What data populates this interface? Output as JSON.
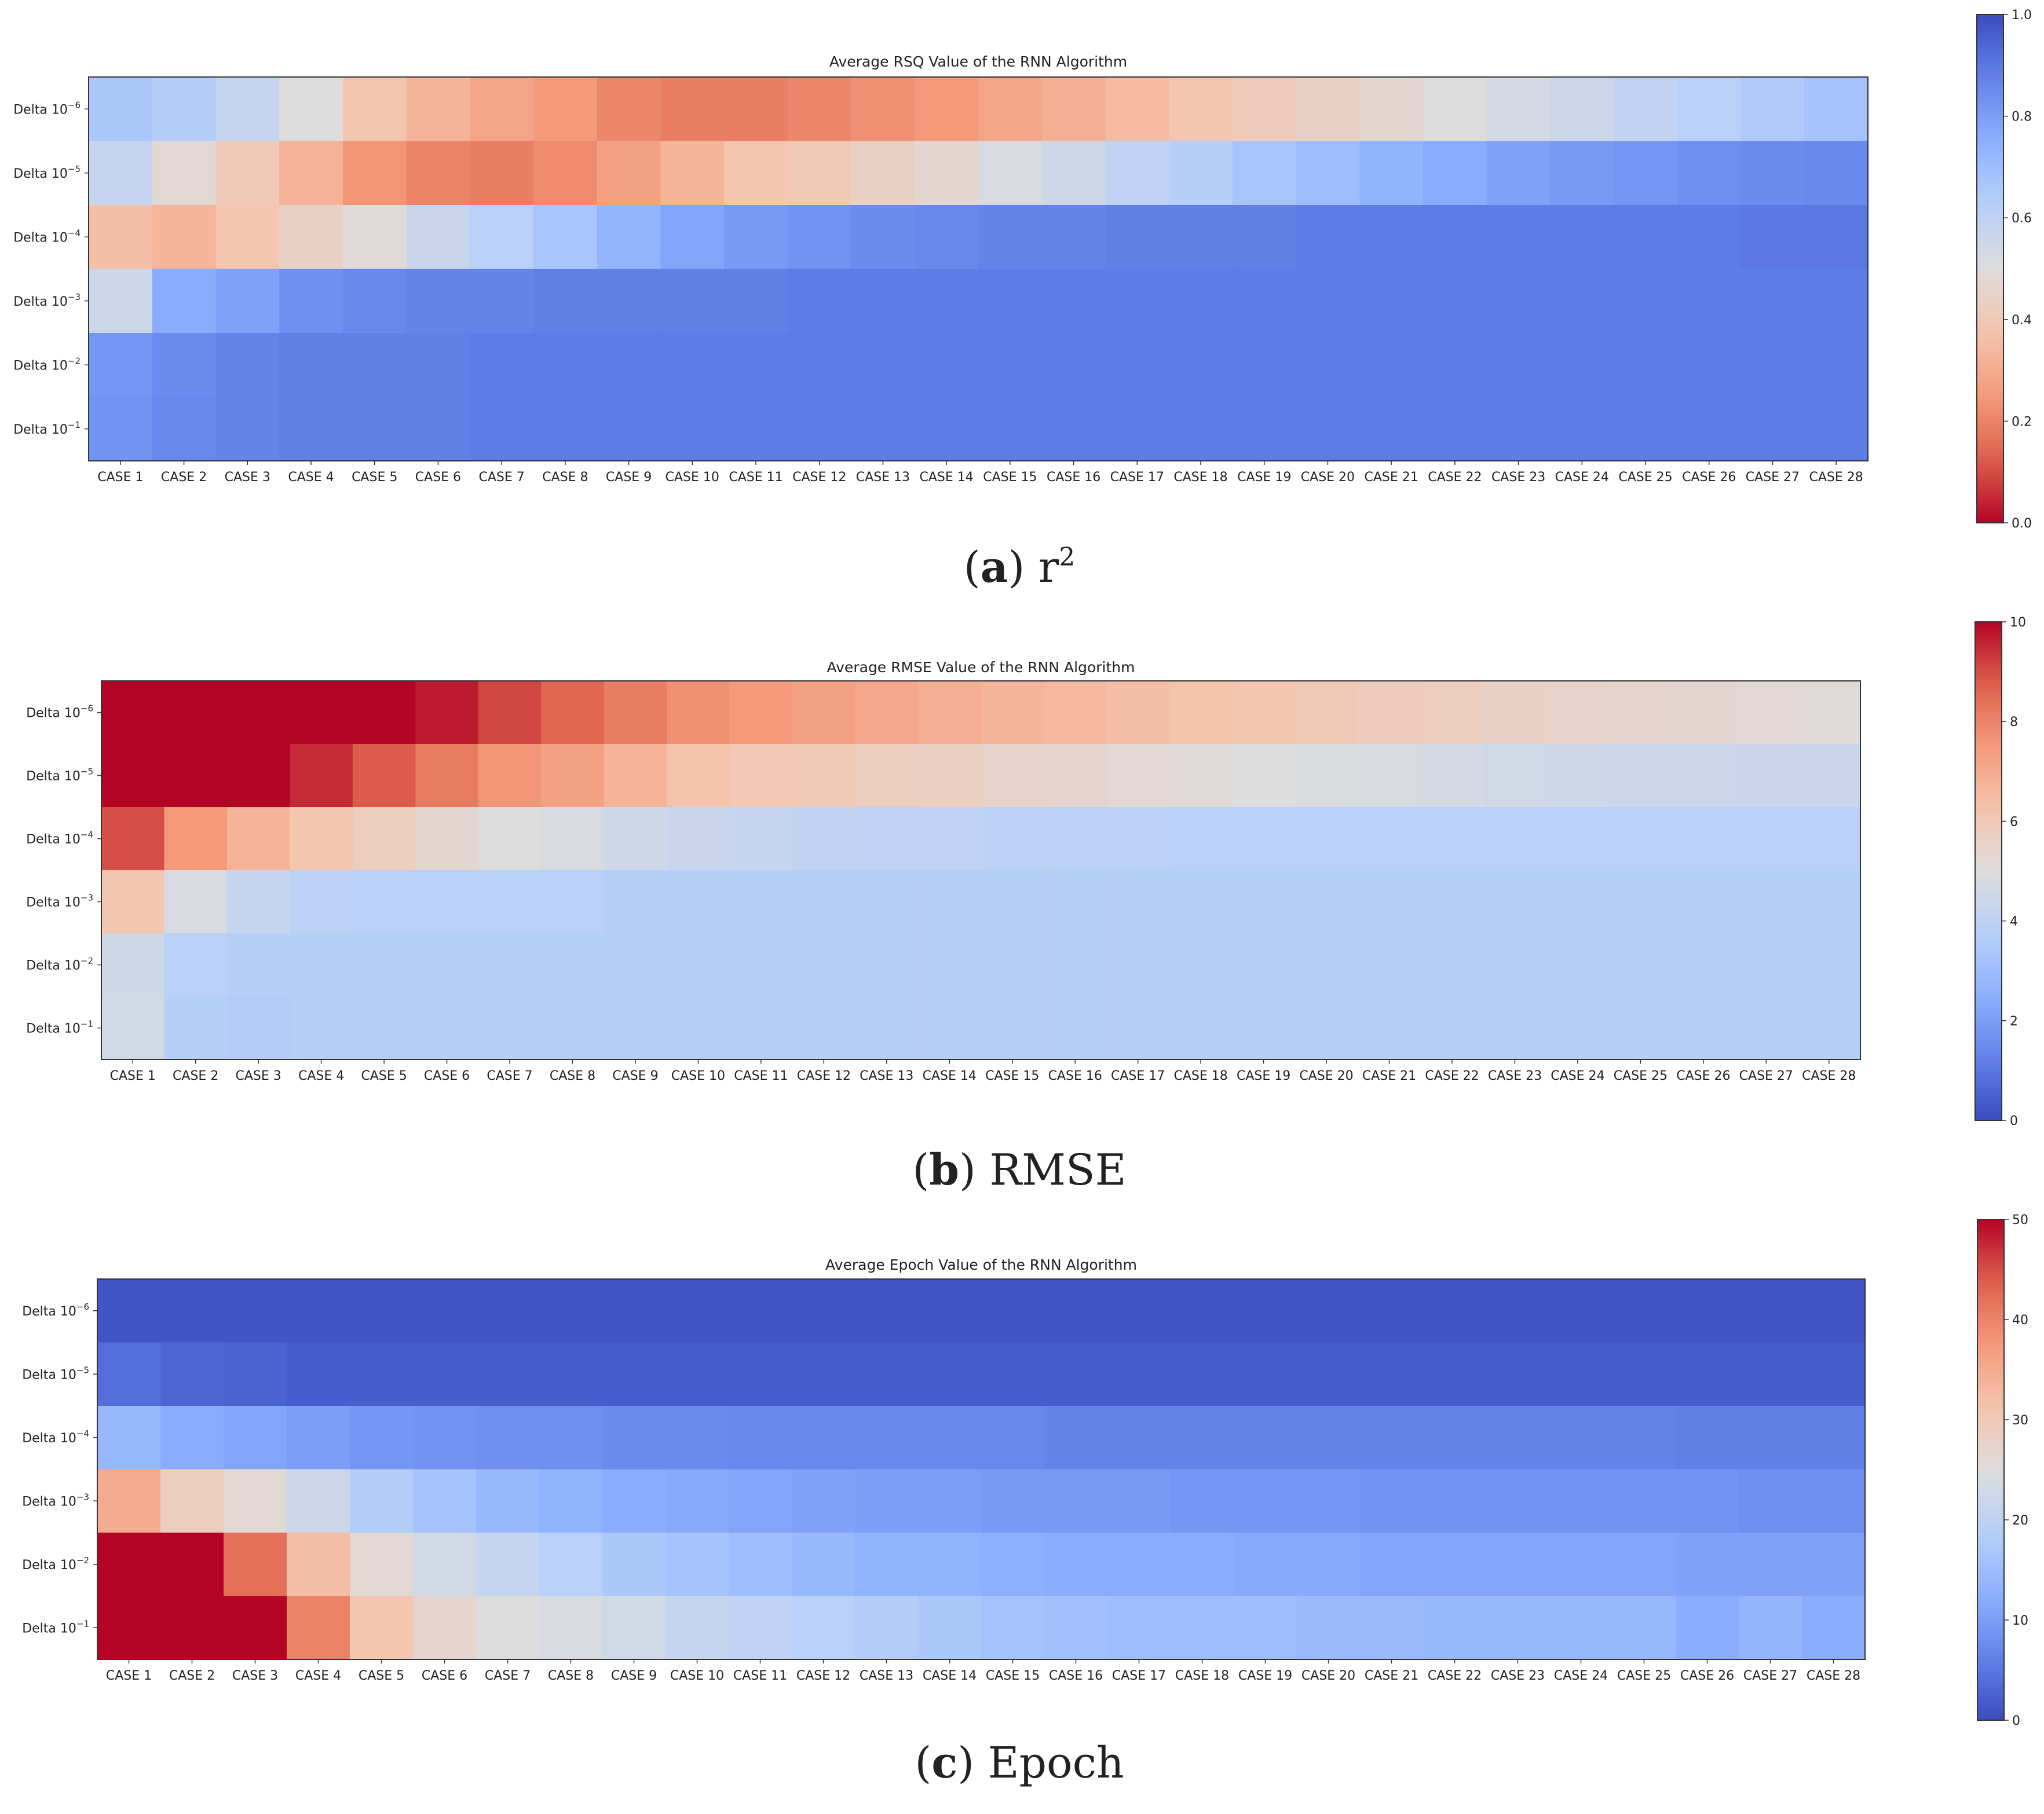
{
  "cases": [
    "CASE 1",
    "CASE 2",
    "CASE 3",
    "CASE 4",
    "CASE 5",
    "CASE 6",
    "CASE 7",
    "CASE 8",
    "CASE 9",
    "CASE 10",
    "CASE 11",
    "CASE 12",
    "CASE 13",
    "CASE 14",
    "CASE 15",
    "CASE 16",
    "CASE 17",
    "CASE 18",
    "CASE 19",
    "CASE 20",
    "CASE 21",
    "CASE 22",
    "CASE 23",
    "CASE 24",
    "CASE 25",
    "CASE 26",
    "CASE 27",
    "CASE 28"
  ],
  "deltas": [
    {
      "base": "Delta 10",
      "exp": "−6"
    },
    {
      "base": "Delta 10",
      "exp": "−5"
    },
    {
      "base": "Delta 10",
      "exp": "−4"
    },
    {
      "base": "Delta 10",
      "exp": "−3"
    },
    {
      "base": "Delta 10",
      "exp": "−2"
    },
    {
      "base": "Delta 10",
      "exp": "−1"
    }
  ],
  "chart_data": [
    {
      "type": "heatmap",
      "title": "Average RSQ Value of the RNN Algorithm",
      "caption": {
        "letter": "a",
        "text": "r",
        "sup": "2"
      },
      "colormap": "coolwarm_r",
      "vmin": 0,
      "vmax": 1,
      "colorbar_ticks": [
        "0.0",
        "0.2",
        "0.4",
        "0.6",
        "0.8",
        "1.0"
      ],
      "values": [
        [
          0.66,
          0.64,
          0.58,
          0.5,
          0.38,
          0.33,
          0.28,
          0.25,
          0.21,
          0.19,
          0.19,
          0.21,
          0.23,
          0.25,
          0.28,
          0.31,
          0.35,
          0.38,
          0.41,
          0.44,
          0.47,
          0.5,
          0.53,
          0.56,
          0.59,
          0.62,
          0.65,
          0.68
        ],
        [
          0.58,
          0.48,
          0.4,
          0.32,
          0.24,
          0.2,
          0.19,
          0.22,
          0.27,
          0.33,
          0.38,
          0.4,
          0.44,
          0.47,
          0.52,
          0.55,
          0.6,
          0.63,
          0.67,
          0.7,
          0.74,
          0.76,
          0.79,
          0.81,
          0.82,
          0.84,
          0.85,
          0.86
        ],
        [
          0.36,
          0.33,
          0.38,
          0.44,
          0.49,
          0.57,
          0.62,
          0.67,
          0.73,
          0.78,
          0.81,
          0.83,
          0.85,
          0.86,
          0.87,
          0.87,
          0.88,
          0.88,
          0.88,
          0.89,
          0.89,
          0.89,
          0.89,
          0.89,
          0.89,
          0.89,
          0.9,
          0.9
        ],
        [
          0.56,
          0.76,
          0.79,
          0.84,
          0.86,
          0.87,
          0.87,
          0.88,
          0.88,
          0.88,
          0.88,
          0.89,
          0.89,
          0.89,
          0.89,
          0.89,
          0.89,
          0.89,
          0.89,
          0.89,
          0.89,
          0.89,
          0.89,
          0.89,
          0.89,
          0.89,
          0.89,
          0.89
        ],
        [
          0.82,
          0.85,
          0.87,
          0.88,
          0.88,
          0.88,
          0.89,
          0.89,
          0.89,
          0.89,
          0.89,
          0.89,
          0.89,
          0.89,
          0.89,
          0.89,
          0.89,
          0.89,
          0.89,
          0.89,
          0.89,
          0.89,
          0.89,
          0.89,
          0.89,
          0.89,
          0.89,
          0.89
        ],
        [
          0.83,
          0.86,
          0.87,
          0.88,
          0.88,
          0.88,
          0.89,
          0.89,
          0.89,
          0.89,
          0.89,
          0.89,
          0.89,
          0.89,
          0.89,
          0.89,
          0.89,
          0.89,
          0.89,
          0.89,
          0.89,
          0.89,
          0.89,
          0.89,
          0.89,
          0.89,
          0.89,
          0.89
        ]
      ]
    },
    {
      "type": "heatmap",
      "title": "Average RMSE Value of the RNN Algorithm",
      "caption": {
        "letter": "b",
        "text": "RMSE",
        "sup": ""
      },
      "colormap": "coolwarm",
      "vmin": 0,
      "vmax": 10,
      "colorbar_ticks": [
        "0",
        "2",
        "4",
        "6",
        "8",
        "10"
      ],
      "values": [
        [
          10,
          10,
          10,
          10,
          10,
          9.7,
          9.1,
          8.6,
          8.1,
          7.7,
          7.5,
          7.3,
          7.1,
          6.9,
          6.7,
          6.6,
          6.4,
          6.3,
          6.2,
          6.0,
          5.9,
          5.8,
          5.6,
          5.5,
          5.4,
          5.3,
          5.2,
          5.1
        ],
        [
          10,
          10,
          10,
          9.5,
          8.8,
          8.2,
          7.6,
          7.3,
          6.8,
          6.3,
          6.1,
          6.0,
          5.8,
          5.7,
          5.5,
          5.4,
          5.2,
          5.1,
          5.0,
          4.9,
          4.8,
          4.7,
          4.6,
          4.5,
          4.4,
          4.4,
          4.3,
          4.3
        ],
        [
          9.0,
          7.5,
          6.8,
          6.2,
          5.8,
          5.3,
          5.0,
          4.8,
          4.5,
          4.3,
          4.2,
          4.1,
          4.0,
          4.0,
          3.9,
          3.9,
          3.9,
          3.8,
          3.8,
          3.8,
          3.8,
          3.8,
          3.8,
          3.8,
          3.8,
          3.8,
          3.8,
          3.8
        ],
        [
          6.2,
          4.8,
          4.2,
          3.9,
          3.8,
          3.8,
          3.8,
          3.8,
          3.7,
          3.7,
          3.7,
          3.7,
          3.7,
          3.7,
          3.7,
          3.7,
          3.7,
          3.7,
          3.7,
          3.7,
          3.7,
          3.7,
          3.7,
          3.7,
          3.7,
          3.7,
          3.7,
          3.7
        ],
        [
          4.5,
          3.8,
          3.7,
          3.7,
          3.7,
          3.7,
          3.7,
          3.7,
          3.7,
          3.7,
          3.7,
          3.7,
          3.7,
          3.7,
          3.7,
          3.7,
          3.7,
          3.7,
          3.7,
          3.7,
          3.7,
          3.7,
          3.7,
          3.7,
          3.7,
          3.7,
          3.7,
          3.7
        ],
        [
          4.6,
          3.7,
          3.6,
          3.7,
          3.7,
          3.7,
          3.7,
          3.7,
          3.7,
          3.7,
          3.7,
          3.7,
          3.7,
          3.7,
          3.7,
          3.7,
          3.7,
          3.7,
          3.7,
          3.7,
          3.7,
          3.7,
          3.7,
          3.7,
          3.7,
          3.7,
          3.7,
          3.7
        ]
      ]
    },
    {
      "type": "heatmap",
      "title": "Average Epoch Value of the RNN Algorithm",
      "caption": {
        "letter": "c",
        "text": "Epoch",
        "sup": ""
      },
      "colormap": "coolwarm",
      "vmin": 0,
      "vmax": 50,
      "colorbar_ticks": [
        "0",
        "10",
        "20",
        "30",
        "40",
        "50"
      ],
      "values": [
        [
          1,
          1,
          1,
          1,
          1,
          1,
          1,
          1,
          1,
          1,
          1,
          1,
          1,
          1,
          1,
          1,
          1,
          1,
          1,
          1,
          1,
          1,
          1,
          1,
          1,
          1,
          1,
          1
        ],
        [
          4,
          3,
          2.5,
          2,
          2,
          2,
          2,
          2,
          2,
          2,
          2,
          2,
          2,
          2,
          2,
          2,
          2,
          2,
          2,
          2,
          2,
          2,
          2,
          2,
          2,
          2,
          2,
          2
        ],
        [
          14,
          12,
          11,
          10,
          9,
          8.5,
          8,
          8,
          7.5,
          7.5,
          7,
          7,
          7,
          7,
          7,
          6.5,
          6.5,
          6.5,
          6.5,
          6.5,
          6.5,
          6.5,
          6.5,
          6.5,
          6.5,
          6,
          6,
          6
        ],
        [
          35,
          29,
          26,
          22,
          18,
          16,
          14,
          13,
          12,
          11.5,
          11,
          10.5,
          10,
          10,
          9.5,
          9.5,
          9.5,
          9,
          9,
          9,
          8.5,
          8.5,
          8.5,
          8.5,
          8.5,
          8.5,
          8,
          8
        ],
        [
          50,
          50,
          42,
          32,
          26,
          23,
          21,
          19,
          17,
          16,
          15,
          14,
          13,
          13,
          12.5,
          12,
          12,
          12,
          11.5,
          11.5,
          11,
          11,
          11,
          11,
          11,
          10.5,
          10.5,
          10.5
        ],
        [
          50,
          50,
          50,
          40,
          31,
          27,
          25,
          24,
          23,
          21,
          20,
          19,
          18,
          17,
          16,
          15.5,
          15,
          15,
          15,
          14.5,
          14.5,
          14,
          14,
          14,
          14,
          12,
          13.5,
          12
        ]
      ]
    }
  ]
}
